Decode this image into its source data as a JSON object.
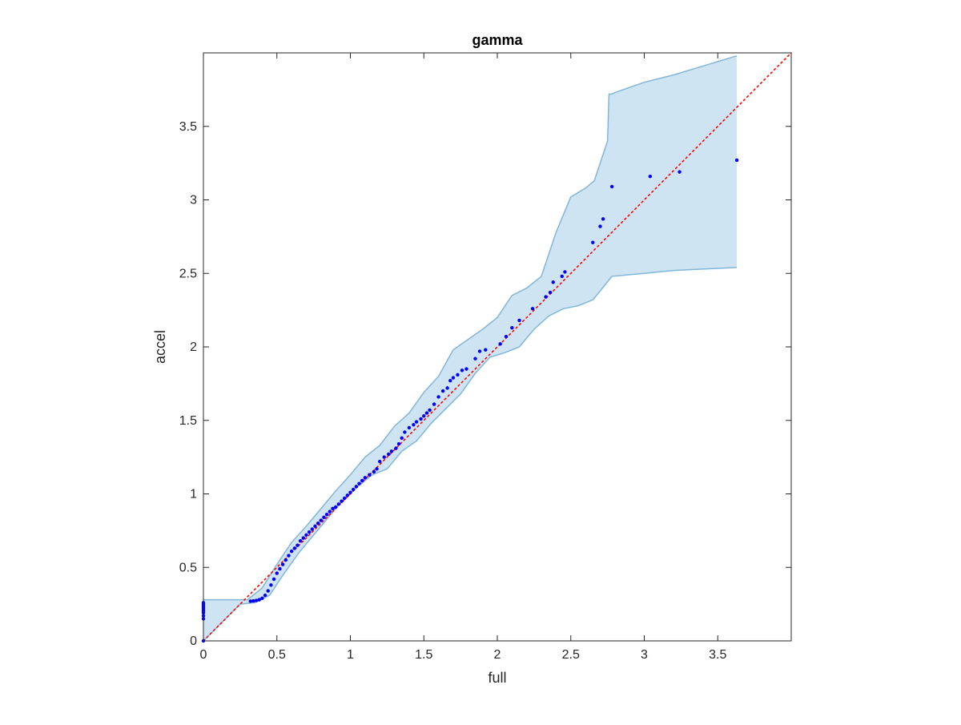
{
  "chart_data": {
    "type": "scatter",
    "title": "gamma",
    "xlabel": "full",
    "ylabel": "accel",
    "xlim": [
      0,
      4
    ],
    "ylim": [
      0,
      4
    ],
    "xticks": [
      0,
      0.5,
      1,
      1.5,
      2,
      2.5,
      3,
      3.5
    ],
    "yticks": [
      0,
      0.5,
      1,
      1.5,
      2,
      2.5,
      3,
      3.5
    ],
    "xtick_labels": [
      "0",
      "0.5",
      "1",
      "1.5",
      "2",
      "2.5",
      "3",
      "3.5"
    ],
    "ytick_labels": [
      "0",
      "0.5",
      "1",
      "1.5",
      "2",
      "2.5",
      "3",
      "3.5"
    ],
    "grid": false,
    "colors": {
      "points": "#0000ff",
      "reference_line": "#ff0000",
      "band_fill": "#cfe4f2",
      "band_edge": "#80b6d9",
      "axes": "#262626"
    },
    "reference_line": {
      "name": "y = x",
      "x": [
        0,
        4
      ],
      "y": [
        0,
        4
      ],
      "style": "dotted"
    },
    "points": {
      "x": [
        0,
        0,
        0,
        0,
        0,
        0,
        0,
        0,
        0,
        0,
        0,
        0.32,
        0.34,
        0.36,
        0.38,
        0.4,
        0.42,
        0.44,
        0.46,
        0.48,
        0.5,
        0.52,
        0.54,
        0.56,
        0.58,
        0.6,
        0.62,
        0.64,
        0.66,
        0.68,
        0.7,
        0.72,
        0.74,
        0.76,
        0.78,
        0.8,
        0.82,
        0.84,
        0.86,
        0.88,
        0.9,
        0.92,
        0.94,
        0.96,
        0.98,
        1.0,
        1.02,
        1.04,
        1.06,
        1.08,
        1.1,
        1.13,
        1.16,
        1.18,
        1.2,
        1.23,
        1.26,
        1.28,
        1.31,
        1.33,
        1.35,
        1.37,
        1.4,
        1.43,
        1.45,
        1.48,
        1.5,
        1.52,
        1.54,
        1.57,
        1.6,
        1.63,
        1.66,
        1.68,
        1.7,
        1.73,
        1.76,
        1.79,
        1.85,
        1.88,
        1.92,
        2.02,
        2.06,
        2.1,
        2.15,
        2.24,
        2.33,
        2.36,
        2.38,
        2.44,
        2.46,
        2.65,
        2.7,
        2.72,
        2.78,
        3.04,
        3.24,
        3.63
      ],
      "y": [
        0,
        0.15,
        0.17,
        0.19,
        0.2,
        0.21,
        0.22,
        0.23,
        0.24,
        0.25,
        0.26,
        0.27,
        0.272,
        0.275,
        0.28,
        0.29,
        0.31,
        0.34,
        0.38,
        0.42,
        0.46,
        0.49,
        0.52,
        0.55,
        0.58,
        0.61,
        0.63,
        0.65,
        0.68,
        0.7,
        0.72,
        0.74,
        0.76,
        0.78,
        0.8,
        0.82,
        0.84,
        0.86,
        0.88,
        0.9,
        0.91,
        0.93,
        0.95,
        0.97,
        0.99,
        1.01,
        1.03,
        1.05,
        1.07,
        1.09,
        1.11,
        1.13,
        1.15,
        1.17,
        1.22,
        1.25,
        1.27,
        1.29,
        1.31,
        1.34,
        1.38,
        1.42,
        1.45,
        1.47,
        1.49,
        1.51,
        1.53,
        1.55,
        1.57,
        1.61,
        1.66,
        1.7,
        1.72,
        1.77,
        1.79,
        1.81,
        1.84,
        1.85,
        1.92,
        1.97,
        1.98,
        2.02,
        2.07,
        2.13,
        2.18,
        2.26,
        2.34,
        2.37,
        2.44,
        2.48,
        2.51,
        2.71,
        2.82,
        2.87,
        3.09,
        3.16,
        3.19,
        3.27
      ]
    },
    "confidence_band": {
      "upper": {
        "x": [
          0,
          0.3,
          0.4,
          0.5,
          0.6,
          0.7,
          0.8,
          0.9,
          1.0,
          1.1,
          1.2,
          1.3,
          1.4,
          1.5,
          1.6,
          1.7,
          1.8,
          1.9,
          2.0,
          2.1,
          2.2,
          2.3,
          2.4,
          2.5,
          2.6,
          2.66,
          2.7,
          2.75,
          2.76,
          2.78,
          2.8,
          3.0,
          3.2,
          3.63
        ],
        "y": [
          0.28,
          0.28,
          0.36,
          0.52,
          0.67,
          0.78,
          0.9,
          1.02,
          1.13,
          1.25,
          1.33,
          1.46,
          1.55,
          1.69,
          1.8,
          1.98,
          2.05,
          2.12,
          2.2,
          2.35,
          2.4,
          2.48,
          2.78,
          3.02,
          3.08,
          3.13,
          3.25,
          3.4,
          3.72,
          3.72,
          3.73,
          3.8,
          3.85,
          3.98
        ]
      },
      "lower": {
        "x": [
          0,
          0.25,
          0.35,
          0.45,
          0.55,
          0.65,
          0.75,
          0.85,
          0.95,
          1.05,
          1.15,
          1.25,
          1.35,
          1.45,
          1.55,
          1.65,
          1.75,
          1.85,
          1.95,
          2.05,
          2.15,
          2.25,
          2.35,
          2.45,
          2.55,
          2.65,
          2.7,
          2.78,
          3.0,
          3.2,
          3.63
        ],
        "y": [
          0,
          0.25,
          0.26,
          0.31,
          0.46,
          0.6,
          0.72,
          0.84,
          0.96,
          1.05,
          1.13,
          1.17,
          1.29,
          1.36,
          1.48,
          1.58,
          1.68,
          1.82,
          1.93,
          1.96,
          2.0,
          2.12,
          2.21,
          2.26,
          2.28,
          2.32,
          2.38,
          2.48,
          2.5,
          2.52,
          2.54
        ]
      }
    }
  }
}
